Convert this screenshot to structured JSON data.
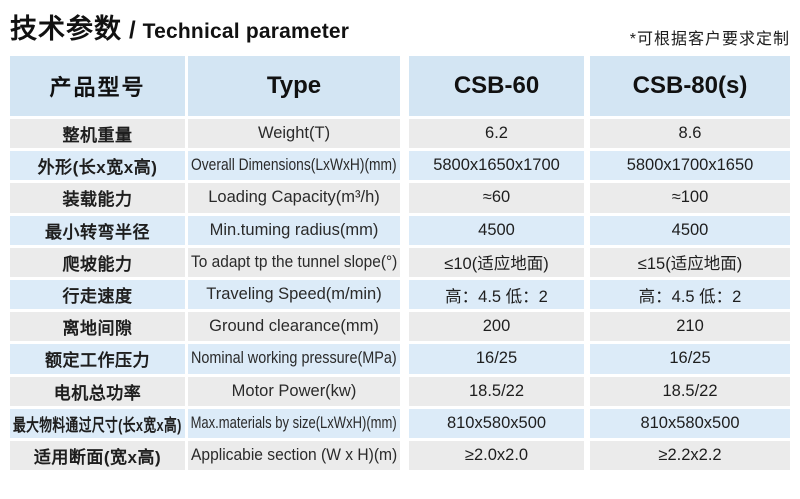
{
  "page": {
    "title_cn": "技术参数",
    "title_sep": "/",
    "title_en": "Technical parameter",
    "note": "*可根据客户要求定制"
  },
  "colors": {
    "header_bg": "#d3e5f3",
    "row_blue": "#dcebf8",
    "row_gray": "#ebebeb",
    "title_text": "#111111",
    "cell_text": "#1e1e1e"
  },
  "table": {
    "headers": {
      "product_cn": "产品型号",
      "type": "Type",
      "model1": "CSB-60",
      "model2": "CSB-80(s)"
    },
    "rows": [
      {
        "cn": "整机重量",
        "en": "Weight(T)",
        "csb60": "6.2",
        "csb80": "8.6"
      },
      {
        "cn": "外形(长x宽x高)",
        "en": "Overall Dimensions(LxWxH)(mm)",
        "csb60": "5800x1650x1700",
        "csb80": "5800x1700x1650"
      },
      {
        "cn": "装载能力",
        "en": "Loading Capacity(m³/h)",
        "csb60": "≈60",
        "csb80": "≈100"
      },
      {
        "cn": "最小转弯半径",
        "en": "Min.tuming radius(mm)",
        "csb60": "4500",
        "csb80": "4500"
      },
      {
        "cn": "爬坡能力",
        "en": "To adapt tp the tunnel slope(°)",
        "csb60": "≤10(适应地面)",
        "csb80": "≤15(适应地面)"
      },
      {
        "cn": "行走速度",
        "en": "Traveling Speed(m/min)",
        "csb60": "高：4.5 低：2",
        "csb80": "高：4.5 低：2"
      },
      {
        "cn": "离地间隙",
        "en": "Ground clearance(mm)",
        "csb60": "200",
        "csb80": "210"
      },
      {
        "cn": "额定工作压力",
        "en": "Nominal working pressure(MPa)",
        "csb60": "16/25",
        "csb80": "16/25"
      },
      {
        "cn": "电机总功率",
        "en": "Motor Power(kw)",
        "csb60": "18.5/22",
        "csb80": "18.5/22"
      },
      {
        "cn": "最大物料通过尺寸(长x宽x高)",
        "en": "Max.materials by size(LxWxH)(mm)",
        "csb60": "810x580x500",
        "csb80": "810x580x500"
      },
      {
        "cn": "适用断面(宽x高)",
        "en": "Applicabie section (W x H)(m)",
        "csb60": "≥2.0x2.0",
        "csb80": "≥2.2x2.2"
      }
    ]
  }
}
